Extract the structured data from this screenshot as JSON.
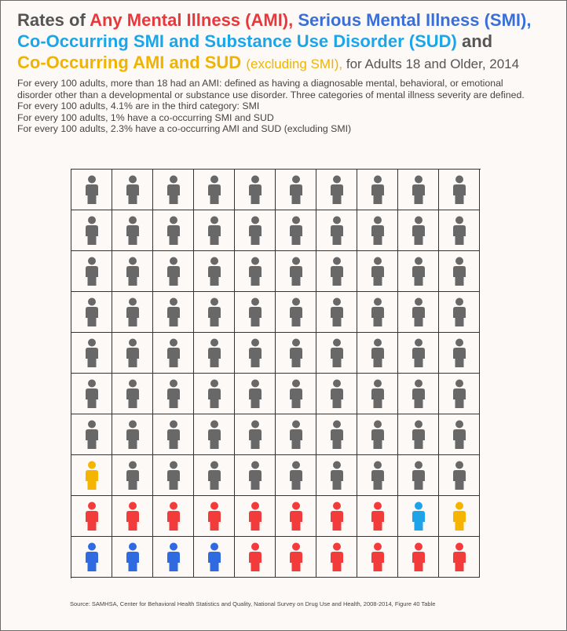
{
  "title": {
    "part1": "Rates of ",
    "ami": "Any Mental Illness (AMI),",
    "smi": "Serious Mental Illness (SMI),",
    "cosmi": "Co-Occurring SMI and Substance Use Disorder (SUD)",
    "and": " and",
    "coami": "Co-Occurring AMI and SUD",
    "excl": "(excluding SMI),",
    "tail": " for Adults 18 and Older, 2014"
  },
  "description": [
    "For every 100 adults, more than 18 had an AMI: defined as having a diagnosable mental, behavioral, or emotional",
    "disorder other than a developmental or substance use disorder. Three categories of mental illness severity are defined.",
    "For every 100 adults,  4.1% are in the third category: SMI",
    "For every 100 adults, 1% have a co-occurring SMI and SUD",
    "For every 100 adults, 2.3% have a co-occurring AMI and SUD (excluding SMI)"
  ],
  "source": "Source: SAMHSA, Center for Behavioral Health Statistics and Quality, National Survey on Drug Use and Health, 2008-2014,  Figure 40 Table",
  "colors": {
    "none": "#686868",
    "ami": "#f23b3b",
    "smi": "#2f6ae0",
    "cosmi": "#1fa3e8",
    "coami": "#f5b400"
  },
  "chart_data": {
    "type": "waffle",
    "rows": 10,
    "cols": 10,
    "icon": "person-icon",
    "cells": [
      "none",
      "none",
      "none",
      "none",
      "none",
      "none",
      "none",
      "none",
      "none",
      "none",
      "none",
      "none",
      "none",
      "none",
      "none",
      "none",
      "none",
      "none",
      "none",
      "none",
      "none",
      "none",
      "none",
      "none",
      "none",
      "none",
      "none",
      "none",
      "none",
      "none",
      "none",
      "none",
      "none",
      "none",
      "none",
      "none",
      "none",
      "none",
      "none",
      "none",
      "none",
      "none",
      "none",
      "none",
      "none",
      "none",
      "none",
      "none",
      "none",
      "none",
      "none",
      "none",
      "none",
      "none",
      "none",
      "none",
      "none",
      "none",
      "none",
      "none",
      "none",
      "none",
      "none",
      "none",
      "none",
      "none",
      "none",
      "none",
      "none",
      "none",
      "coami",
      "none",
      "none",
      "none",
      "none",
      "none",
      "none",
      "none",
      "none",
      "none",
      "ami",
      "ami",
      "ami",
      "ami",
      "ami",
      "ami",
      "ami",
      "ami",
      "cosmi",
      "coami",
      "smi",
      "smi",
      "smi",
      "smi",
      "ami",
      "ami",
      "ami",
      "ami",
      "ami",
      "ami"
    ]
  }
}
